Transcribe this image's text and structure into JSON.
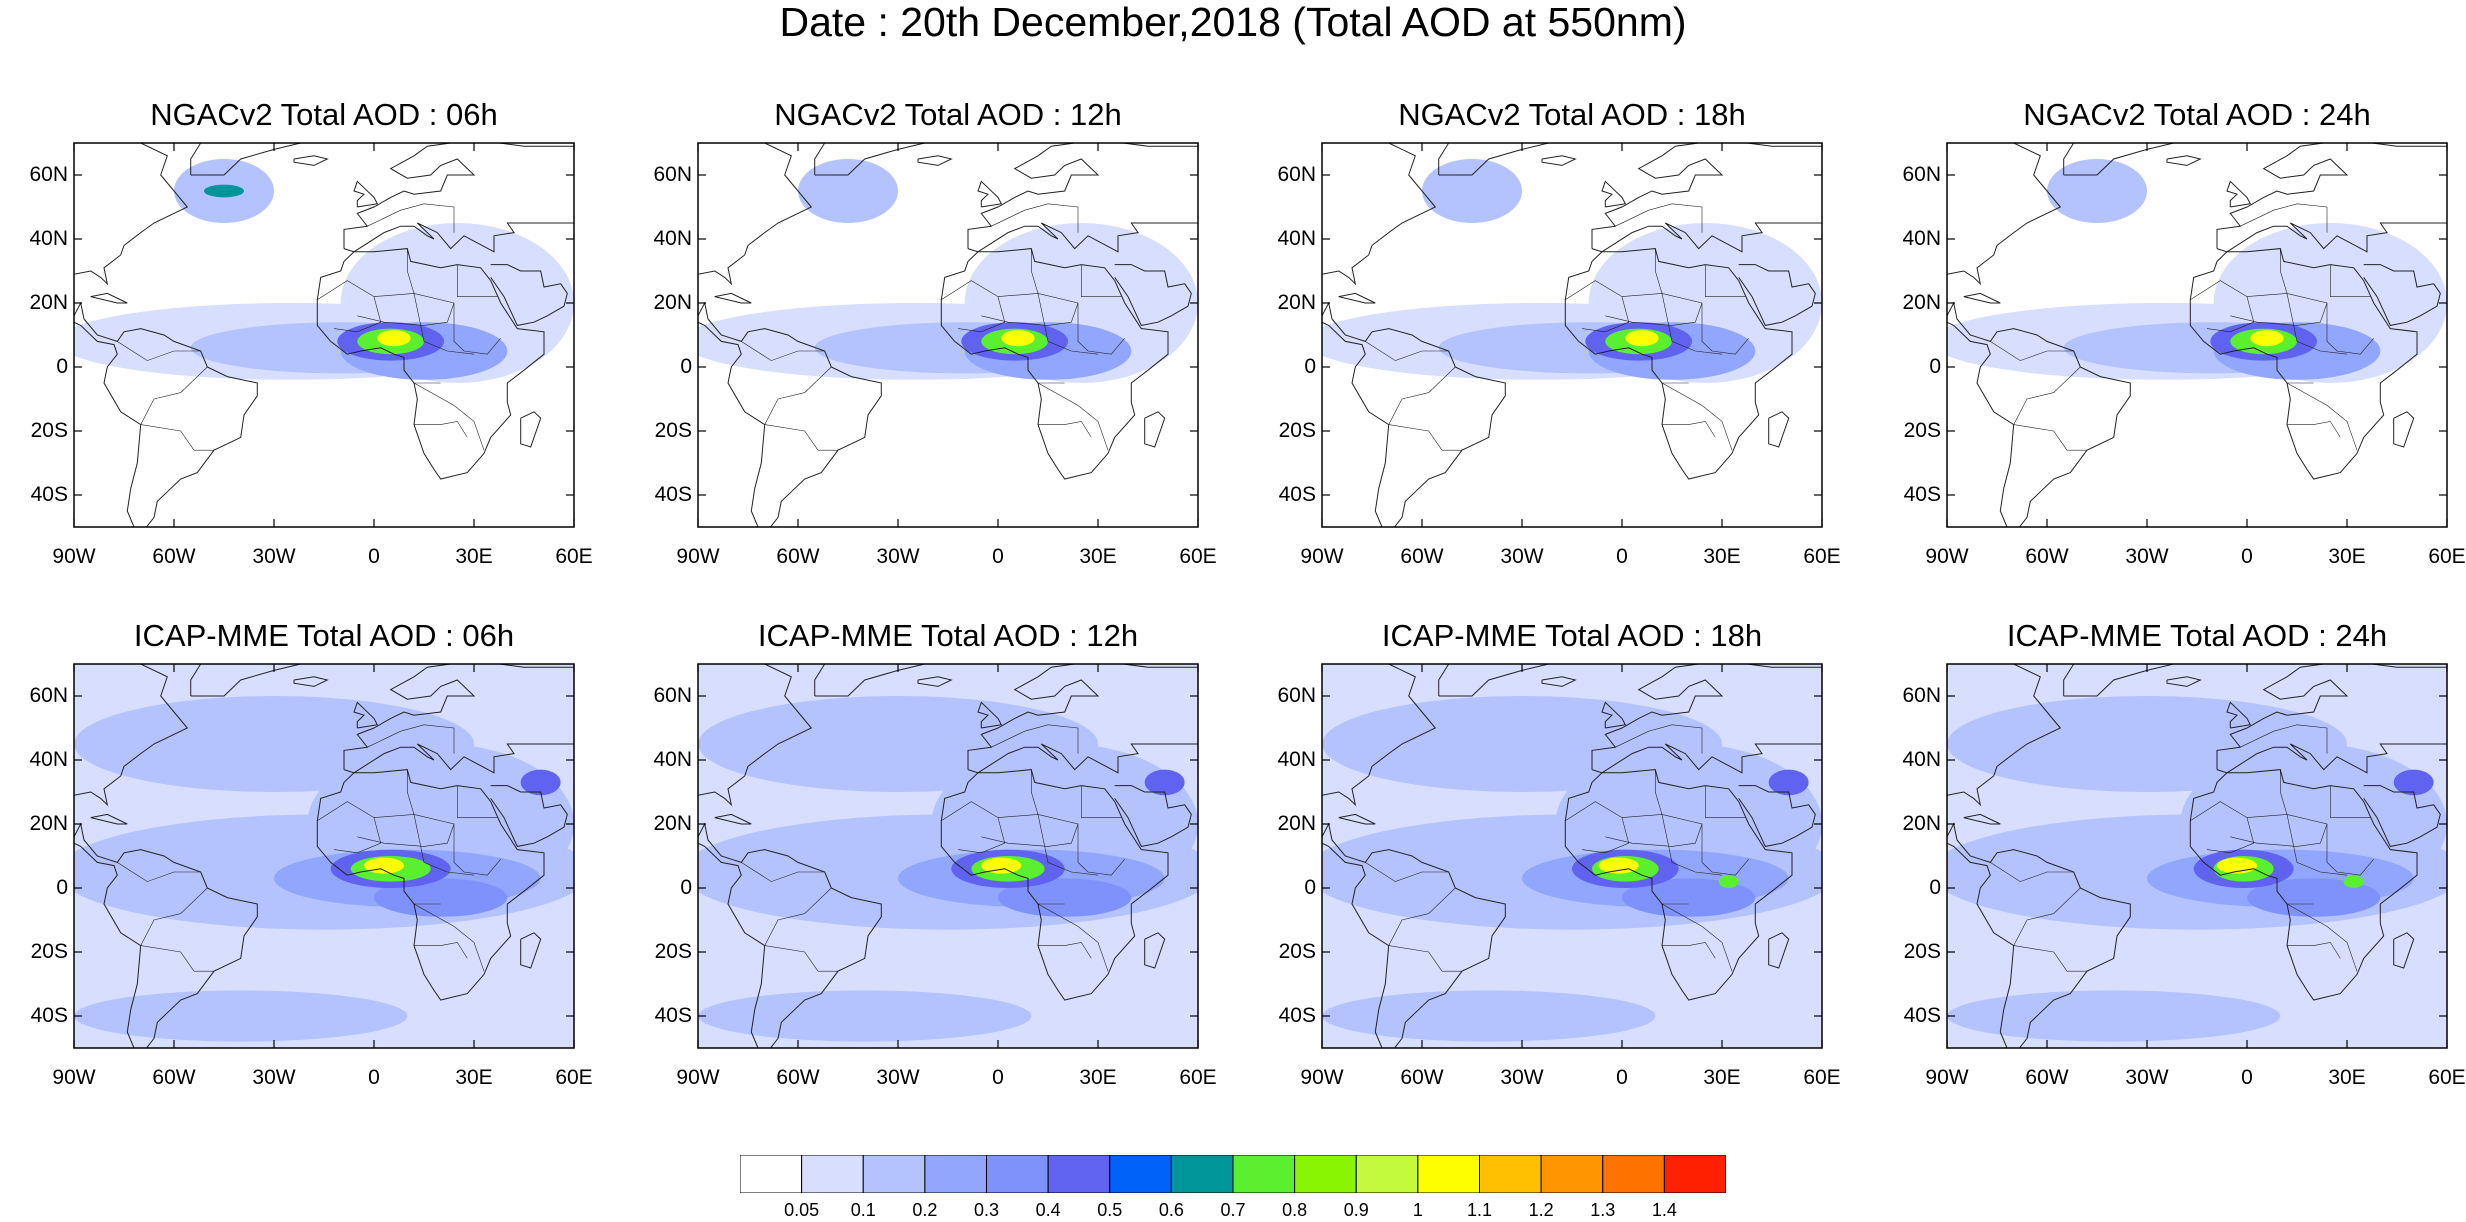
{
  "title": "Date : 20th December,2018 (Total AOD at 550nm)",
  "axes": {
    "lat_ticks": [
      "60N",
      "40N",
      "20N",
      "0",
      "20S",
      "40S"
    ],
    "lon_ticks": [
      "90W",
      "60W",
      "30W",
      "0",
      "30E",
      "60E"
    ],
    "lat_values": [
      60,
      40,
      20,
      0,
      -20,
      -40
    ],
    "lon_values": [
      -90,
      -60,
      -30,
      0,
      30,
      60
    ],
    "lon_range": [
      -90,
      60
    ],
    "lat_range": [
      -50,
      70
    ]
  },
  "panels": [
    {
      "title": "NGACv2 Total AOD : 06h",
      "model": "NGACv2",
      "hour": "06h"
    },
    {
      "title": "NGACv2 Total AOD : 12h",
      "model": "NGACv2",
      "hour": "12h"
    },
    {
      "title": "NGACv2 Total AOD : 18h",
      "model": "NGACv2",
      "hour": "18h"
    },
    {
      "title": "NGACv2 Total AOD : 24h",
      "model": "NGACv2",
      "hour": "24h"
    },
    {
      "title": "ICAP-MME Total AOD : 06h",
      "model": "ICAP-MME",
      "hour": "06h"
    },
    {
      "title": "ICAP-MME Total AOD : 12h",
      "model": "ICAP-MME",
      "hour": "12h"
    },
    {
      "title": "ICAP-MME Total AOD : 18h",
      "model": "ICAP-MME",
      "hour": "18h"
    },
    {
      "title": "ICAP-MME Total AOD : 24h",
      "model": "ICAP-MME",
      "hour": "24h"
    }
  ],
  "colorbar": {
    "labels": [
      "0.05",
      "0.1",
      "0.2",
      "0.3",
      "0.4",
      "0.5",
      "0.6",
      "0.7",
      "0.8",
      "0.9",
      "1",
      "1.1",
      "1.2",
      "1.3",
      "1.4"
    ],
    "colors": [
      "#ffffff",
      "#d7defe",
      "#b4c3fd",
      "#91a6fc",
      "#7f92fb",
      "#5f63f0",
      "#0062f8",
      "#009598",
      "#5bf02f",
      "#8af503",
      "#c4fa3c",
      "#fefe01",
      "#fec000",
      "#fe9501",
      "#fe7300",
      "#fe2000"
    ]
  }
}
